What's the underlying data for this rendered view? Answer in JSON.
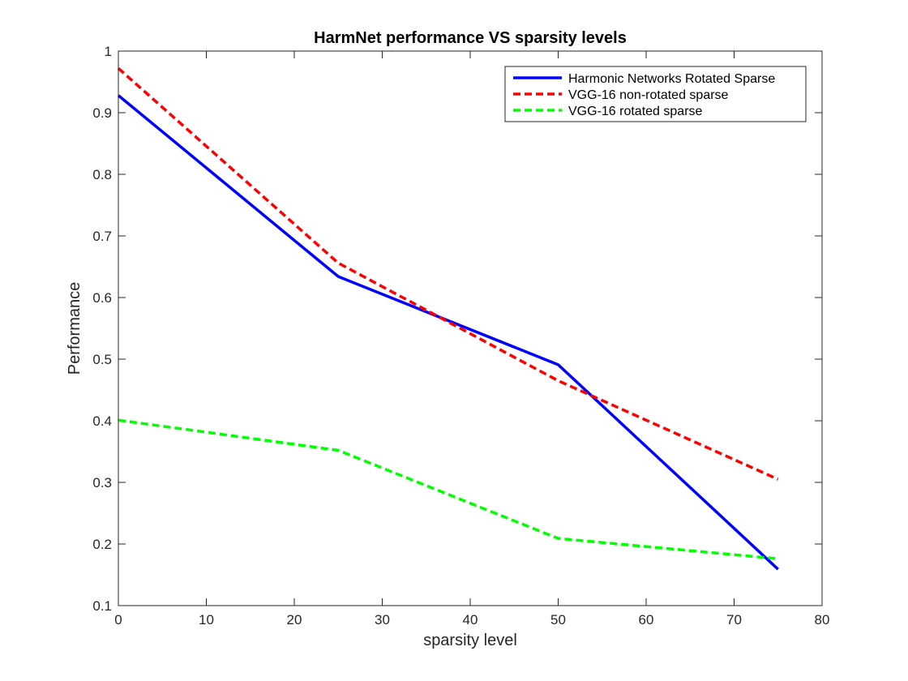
{
  "chart_data": {
    "type": "line",
    "title": "HarmNet performance VS sparsity levels",
    "xlabel": "sparsity level",
    "ylabel": "Performance",
    "xlim": [
      0,
      80
    ],
    "ylim": [
      0.1,
      1
    ],
    "xticks": [
      0,
      10,
      20,
      30,
      40,
      50,
      60,
      70,
      80
    ],
    "yticks": [
      0.1,
      0.2,
      0.3,
      0.4,
      0.5,
      0.6,
      0.7,
      0.8,
      0.9,
      1
    ],
    "x": [
      0,
      25,
      50,
      75
    ],
    "grid": false,
    "legend_position": "top-right",
    "series": [
      {
        "name": "Harmonic Networks Rotated Sparse",
        "values": [
          0.928,
          0.634,
          0.491,
          0.159
        ],
        "color": "#0000ff",
        "dash": "solid"
      },
      {
        "name": "VGG-16 non-rotated sparse",
        "values": [
          0.972,
          0.656,
          0.465,
          0.305
        ],
        "color": "#ff0000",
        "dash": "dashed"
      },
      {
        "name": "VGG-16 rotated sparse",
        "values": [
          0.401,
          0.352,
          0.209,
          0.176
        ],
        "color": "#00ff00",
        "dash": "dashed"
      }
    ]
  }
}
